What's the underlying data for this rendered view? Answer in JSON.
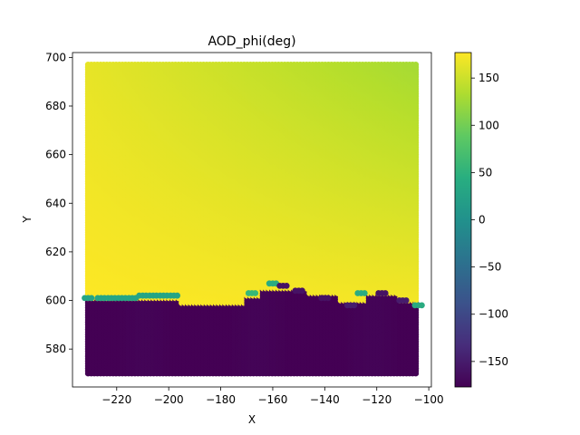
{
  "chart_data": {
    "type": "scatter",
    "title": "AOD_phi(deg)",
    "xlabel": "X",
    "ylabel": "Y",
    "xlim": [
      -237,
      -99
    ],
    "ylim": [
      564.4,
      702
    ],
    "xticks": [
      -220,
      -200,
      -180,
      -160,
      -140,
      -120,
      -100
    ],
    "yticks": [
      580,
      600,
      620,
      640,
      660,
      680,
      700
    ],
    "colormap": "viridis",
    "color_range": [
      -177,
      177
    ],
    "colorbar_ticks": [
      150,
      100,
      50,
      0,
      -50,
      -100,
      -150
    ],
    "grid": false,
    "legend": "none",
    "grid_points": {
      "x_range": [
        -231,
        -104
      ],
      "y_range": [
        570,
        697
      ],
      "upper_region": {
        "description_values": "phi approx 165-177 deg over y > ~600",
        "corner_values": {
          "x_left_y_top": 165,
          "x_right_y_top": 130,
          "x_left_y_bottom": 177,
          "x_right_y_bottom": 172
        }
      },
      "lower_region": {
        "phi_approx": -177
      },
      "boundary_band": [
        {
          "x": -231,
          "y": 601,
          "phi": 30
        },
        {
          "x": -226,
          "y": 601,
          "phi": 30
        },
        {
          "x": -222,
          "y": 601,
          "phi": 30
        },
        {
          "x": -218,
          "y": 601,
          "phi": 30
        },
        {
          "x": -214,
          "y": 601,
          "phi": 30
        },
        {
          "x": -210,
          "y": 602,
          "phi": 30
        },
        {
          "x": -206,
          "y": 602,
          "phi": 30
        },
        {
          "x": -202,
          "y": 602,
          "phi": 30
        },
        {
          "x": -198,
          "y": 602,
          "phi": 30
        },
        {
          "x": -168,
          "y": 603,
          "phi": 60
        },
        {
          "x": -160,
          "y": 607,
          "phi": 40
        },
        {
          "x": -126,
          "y": 603,
          "phi": 40
        },
        {
          "x": -104,
          "y": 598,
          "phi": 40
        },
        {
          "x": -156,
          "y": 606,
          "phi": -160
        },
        {
          "x": -150,
          "y": 604,
          "phi": -160
        },
        {
          "x": -140,
          "y": 601,
          "phi": -160
        },
        {
          "x": -130,
          "y": 598,
          "phi": -150
        },
        {
          "x": -118,
          "y": 603,
          "phi": -160
        },
        {
          "x": -110,
          "y": 600,
          "phi": -150
        }
      ]
    }
  }
}
